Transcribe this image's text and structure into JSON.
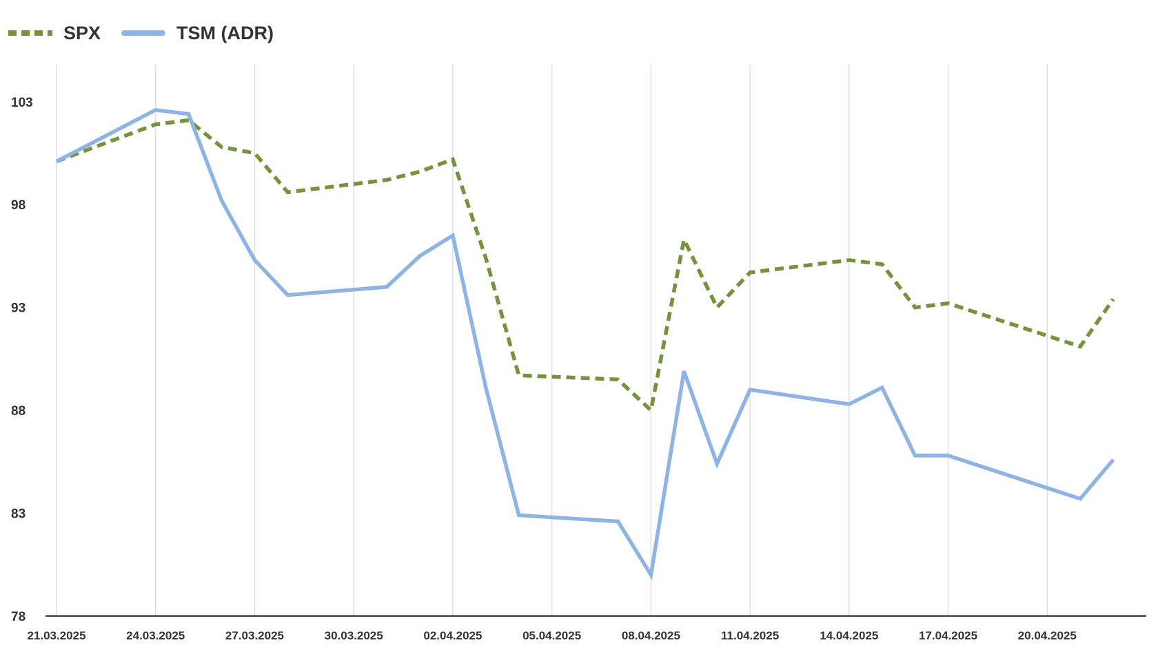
{
  "chart_data": {
    "type": "line",
    "title": "",
    "xlabel": "",
    "ylabel": "",
    "x_ticks": [
      "21.03.2025",
      "24.03.2025",
      "27.03.2025",
      "30.03.2025",
      "02.04.2025",
      "05.04.2025",
      "08.04.2025",
      "11.04.2025",
      "14.04.2025",
      "17.04.2025",
      "20.04.2025"
    ],
    "x_range": [
      "2025-03-21",
      "2025-04-23"
    ],
    "y_ticks": [
      78,
      83,
      88,
      93,
      98,
      103
    ],
    "ylim": [
      78,
      104.8
    ],
    "grid": "vertical",
    "legend_position": "top-left",
    "series": [
      {
        "name": "SPX",
        "color": "#76923c",
        "style": "dashed",
        "x": [
          "2025-03-21",
          "2025-03-24",
          "2025-03-25",
          "2025-03-26",
          "2025-03-27",
          "2025-03-28",
          "2025-03-31",
          "2025-04-01",
          "2025-04-02",
          "2025-04-03",
          "2025-04-04",
          "2025-04-07",
          "2025-04-08",
          "2025-04-09",
          "2025-04-10",
          "2025-04-11",
          "2025-04-14",
          "2025-04-15",
          "2025-04-16",
          "2025-04-17",
          "2025-04-21",
          "2025-04-22"
        ],
        "values": [
          100.1,
          101.9,
          102.1,
          100.8,
          100.5,
          98.6,
          99.2,
          99.6,
          100.2,
          95.4,
          89.7,
          89.5,
          88.0,
          96.3,
          93.0,
          94.7,
          95.3,
          95.1,
          93.0,
          93.2,
          91.1,
          93.4
        ]
      },
      {
        "name": "TSM (ADR)",
        "color": "#8eb4e3",
        "style": "solid",
        "x": [
          "2025-03-21",
          "2025-03-24",
          "2025-03-25",
          "2025-03-26",
          "2025-03-27",
          "2025-03-28",
          "2025-03-31",
          "2025-04-01",
          "2025-04-02",
          "2025-04-03",
          "2025-04-04",
          "2025-04-07",
          "2025-04-08",
          "2025-04-09",
          "2025-04-10",
          "2025-04-11",
          "2025-04-14",
          "2025-04-15",
          "2025-04-16",
          "2025-04-17",
          "2025-04-21",
          "2025-04-22"
        ],
        "values": [
          100.1,
          102.6,
          102.4,
          98.2,
          95.3,
          93.6,
          94.0,
          95.5,
          96.5,
          89.1,
          82.9,
          82.6,
          80.0,
          89.9,
          85.4,
          89.0,
          88.3,
          89.1,
          85.8,
          85.8,
          83.7,
          85.6
        ]
      }
    ]
  }
}
